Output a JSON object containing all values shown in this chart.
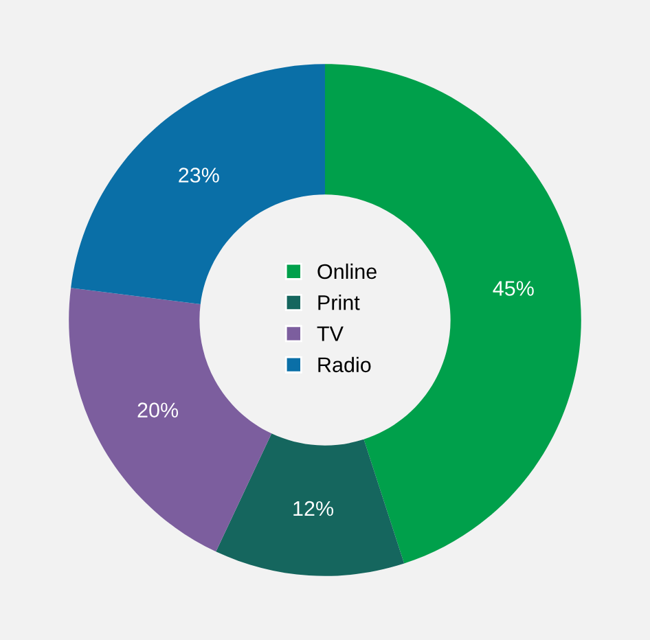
{
  "chart_data": {
    "type": "donut",
    "categories": [
      "Online",
      "Print",
      "TV",
      "Radio"
    ],
    "values": [
      45,
      12,
      20,
      23
    ],
    "colors": [
      "#00a04b",
      "#15665e",
      "#7c5e9e",
      "#0a6fa7"
    ],
    "value_labels": [
      "45%",
      "12%",
      "20%",
      "23%"
    ],
    "legend": "center"
  }
}
